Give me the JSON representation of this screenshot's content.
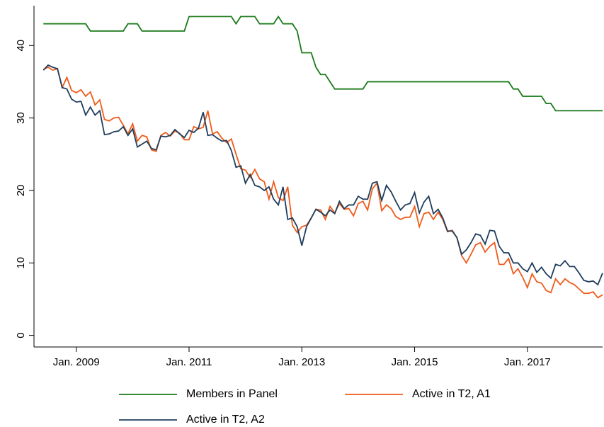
{
  "chart_data": {
    "type": "line",
    "x": [
      "2008-06",
      "2008-07",
      "2008-08",
      "2008-09",
      "2008-10",
      "2008-11",
      "2008-12",
      "2009-01",
      "2009-02",
      "2009-03",
      "2009-04",
      "2009-05",
      "2009-06",
      "2009-07",
      "2009-08",
      "2009-09",
      "2009-10",
      "2009-11",
      "2009-12",
      "2010-01",
      "2010-02",
      "2010-03",
      "2010-04",
      "2010-05",
      "2010-06",
      "2010-07",
      "2010-08",
      "2010-09",
      "2010-10",
      "2010-11",
      "2010-12",
      "2011-01",
      "2011-02",
      "2011-03",
      "2011-04",
      "2011-05",
      "2011-06",
      "2011-07",
      "2011-08",
      "2011-09",
      "2011-10",
      "2011-11",
      "2011-12",
      "2012-01",
      "2012-02",
      "2012-03",
      "2012-04",
      "2012-05",
      "2012-06",
      "2012-07",
      "2012-08",
      "2012-09",
      "2012-10",
      "2012-11",
      "2012-12",
      "2013-01",
      "2013-02",
      "2013-03",
      "2013-04",
      "2013-05",
      "2013-06",
      "2013-07",
      "2013-08",
      "2013-09",
      "2013-10",
      "2013-11",
      "2013-12",
      "2014-01",
      "2014-02",
      "2014-03",
      "2014-04",
      "2014-05",
      "2014-06",
      "2014-07",
      "2014-08",
      "2014-09",
      "2014-10",
      "2014-11",
      "2014-12",
      "2015-01",
      "2015-02",
      "2015-03",
      "2015-04",
      "2015-05",
      "2015-06",
      "2015-07",
      "2015-08",
      "2015-09",
      "2015-10",
      "2015-11",
      "2015-12",
      "2016-01",
      "2016-02",
      "2016-03",
      "2016-04",
      "2016-05",
      "2016-06",
      "2016-07",
      "2016-08",
      "2016-09",
      "2016-10",
      "2016-11",
      "2016-12",
      "2017-01",
      "2017-02",
      "2017-03",
      "2017-04",
      "2017-05",
      "2017-06",
      "2017-07",
      "2017-08",
      "2017-09",
      "2017-10",
      "2017-11",
      "2017-12",
      "2018-01",
      "2018-02",
      "2018-03",
      "2018-04",
      "2018-05"
    ],
    "series": [
      {
        "name": "Members in Panel",
        "color": "#1a7a1a",
        "values": [
          43,
          43,
          43,
          43,
          43,
          43,
          43,
          43,
          43,
          43,
          42,
          42,
          42,
          42,
          42,
          42,
          42,
          42,
          43,
          43,
          43,
          42,
          42,
          42,
          42,
          42,
          42,
          42,
          42,
          42,
          42,
          44,
          44,
          44,
          44,
          44,
          44,
          44,
          44,
          44,
          44,
          43,
          44,
          44,
          44,
          44,
          43,
          43,
          43,
          43,
          44,
          43,
          43,
          43,
          42,
          39,
          39,
          39,
          37,
          36,
          36,
          35,
          34,
          34,
          34,
          34,
          34,
          34,
          34,
          35,
          35,
          35,
          35,
          35,
          35,
          35,
          35,
          35,
          35,
          35,
          35,
          35,
          35,
          35,
          35,
          35,
          35,
          35,
          35,
          35,
          35,
          35,
          35,
          35,
          35,
          35,
          35,
          35,
          35,
          35,
          34,
          34,
          33,
          33,
          33,
          33,
          33,
          32,
          32,
          31,
          31,
          31,
          31,
          31,
          31,
          31,
          31,
          31,
          31,
          31
        ]
      },
      {
        "name": "Active in T2, A1",
        "color": "#f05a1a",
        "values": [
          36.7,
          37.0,
          36.6,
          36.8,
          34.2,
          35.6,
          33.8,
          33.5,
          33.9,
          33.0,
          33.6,
          31.8,
          32.5,
          29.8,
          29.6,
          30.0,
          30.1,
          29.0,
          27.8,
          29.2,
          26.8,
          27.6,
          27.4,
          25.6,
          25.4,
          27.6,
          28.0,
          27.5,
          28.2,
          27.9,
          27.0,
          27.0,
          28.8,
          28.5,
          28.7,
          31.0,
          27.8,
          28.1,
          27.2,
          26.6,
          27.1,
          25.0,
          23.0,
          22.8,
          21.8,
          22.9,
          21.6,
          21.2,
          18.8,
          21.2,
          19.0,
          18.6,
          20.5,
          15.2,
          14.2,
          15.0,
          15.2,
          16.2,
          17.4,
          17.3,
          16.0,
          17.8,
          16.9,
          18.2,
          17.4,
          17.5,
          16.5,
          18.2,
          18.5,
          17.3,
          20.2,
          21.0,
          17.2,
          18.0,
          17.5,
          16.4,
          16.0,
          16.3,
          16.3,
          17.8,
          15.0,
          16.8,
          17.0,
          16.0,
          17.0,
          16.0,
          14.3,
          14.5,
          13.5,
          11.0,
          10.0,
          11.2,
          12.5,
          12.8,
          11.5,
          12.3,
          12.8,
          9.8,
          9.8,
          10.6,
          8.5,
          9.2,
          8.0,
          6.6,
          8.5,
          7.4,
          7.2,
          6.2,
          5.9,
          7.8,
          7.0,
          7.8,
          7.3,
          7.0,
          6.4,
          5.8,
          5.8,
          6.0,
          5.2,
          5.6
        ]
      },
      {
        "name": "Active in T2, A2",
        "color": "#1f3d5c",
        "values": [
          36.6,
          37.3,
          37.0,
          36.8,
          34.2,
          34.0,
          32.6,
          32.2,
          32.3,
          30.4,
          31.5,
          30.4,
          31.0,
          27.7,
          27.8,
          28.1,
          28.2,
          28.8,
          27.6,
          28.5,
          26.0,
          26.4,
          26.8,
          25.8,
          25.6,
          27.5,
          27.4,
          27.6,
          28.4,
          27.8,
          27.3,
          28.3,
          28.0,
          28.6,
          30.8,
          27.6,
          27.7,
          27.2,
          26.8,
          26.9,
          25.5,
          23.2,
          23.4,
          21.0,
          22.2,
          20.7,
          20.5,
          20.0,
          20.5,
          18.8,
          18.0,
          20.5,
          16.0,
          16.2,
          15.0,
          12.4,
          15.0,
          16.2,
          17.4,
          17.0,
          16.5,
          17.3,
          16.8,
          18.5,
          17.5,
          18.0,
          18.0,
          19.2,
          18.8,
          18.8,
          21.0,
          21.2,
          18.6,
          20.7,
          19.8,
          18.5,
          17.3,
          18.0,
          18.2,
          19.7,
          16.9,
          18.4,
          19.2,
          16.8,
          17.4,
          16.2,
          14.4,
          14.4,
          13.5,
          11.2,
          11.8,
          12.8,
          14.0,
          13.8,
          12.6,
          14.5,
          14.4,
          12.3,
          11.4,
          11.4,
          10.0,
          10.0,
          9.2,
          8.8,
          10.0,
          8.7,
          9.4,
          8.5,
          7.9,
          9.8,
          9.6,
          10.3,
          9.5,
          9.5,
          8.6,
          7.6,
          7.4,
          7.5,
          7.0,
          8.6
        ]
      }
    ],
    "xlim": [
      "2008-04",
      "2018-05"
    ],
    "xticks": [
      {
        "value": "2009-01",
        "label": "Jan. 2009"
      },
      {
        "value": "2011-01",
        "label": "Jan. 2011"
      },
      {
        "value": "2013-01",
        "label": "Jan. 2013"
      },
      {
        "value": "2015-01",
        "label": "Jan. 2015"
      },
      {
        "value": "2017-01",
        "label": "Jan. 2017"
      }
    ],
    "ylim": [
      -1.6,
      45.5
    ],
    "yticks": [
      0,
      10,
      20,
      30,
      40
    ],
    "grid": false,
    "legend": "bottom"
  }
}
